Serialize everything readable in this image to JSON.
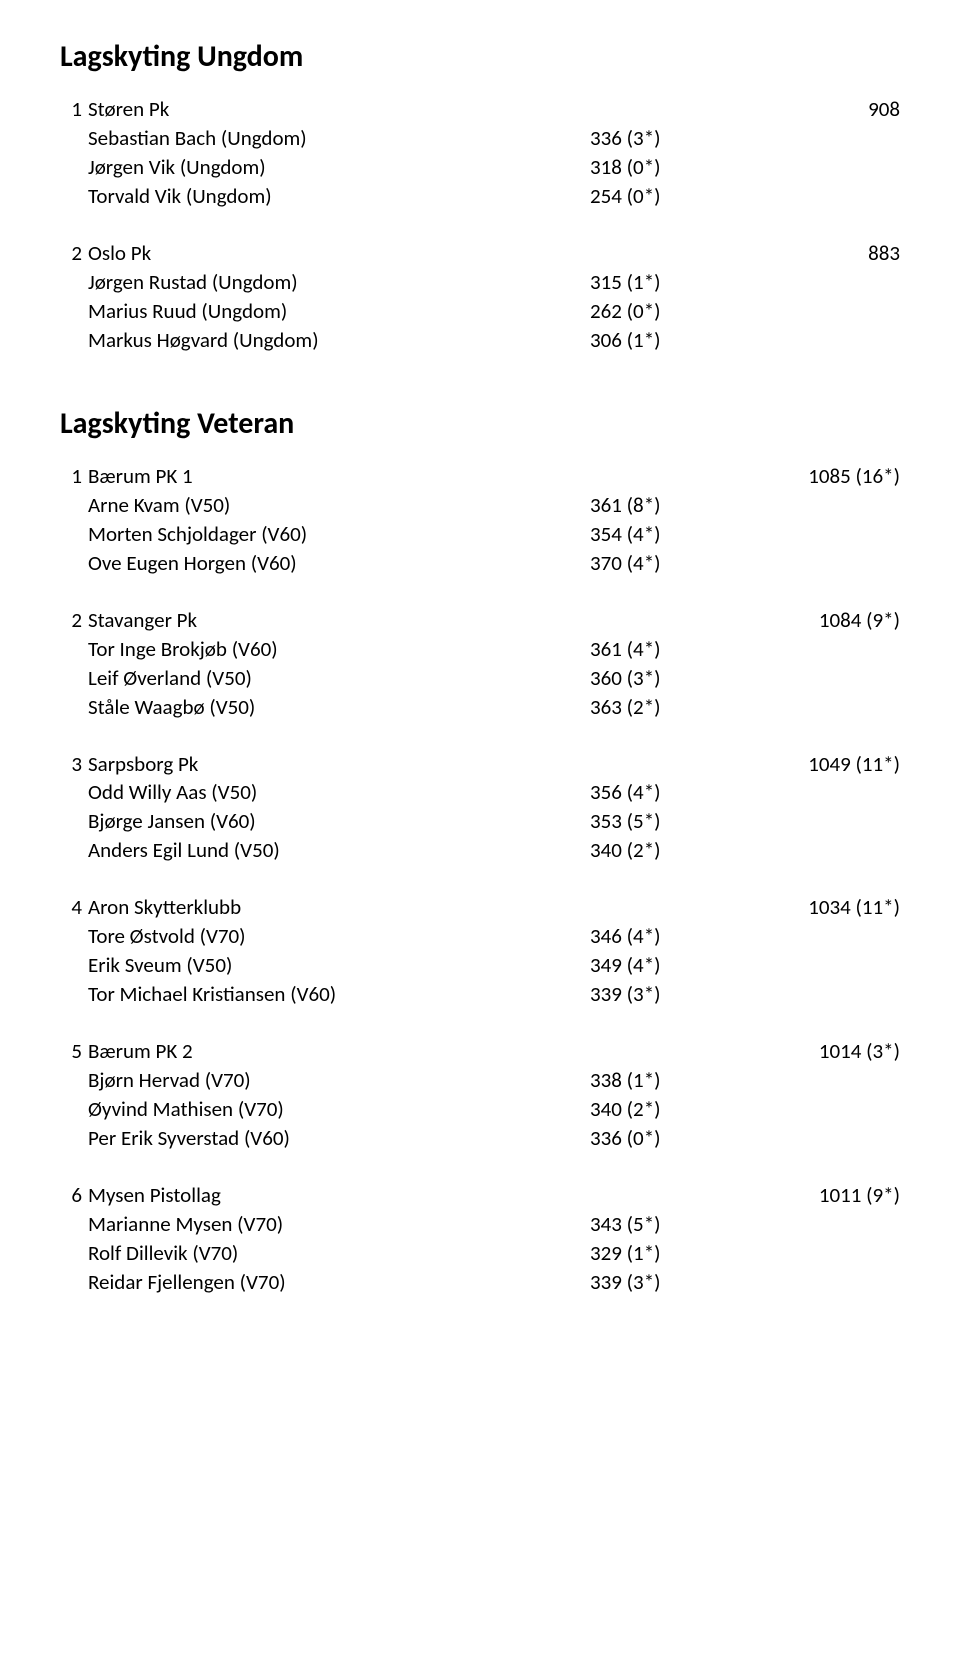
{
  "sections": [
    {
      "title": "Lagskyting Ungdom",
      "teams": [
        {
          "rank": "1",
          "name": "Støren Pk",
          "total": "908",
          "members": [
            {
              "name": "Sebastian Bach (Ungdom)",
              "score": "336 (3*)"
            },
            {
              "name": "Jørgen Vik (Ungdom)",
              "score": "318 (0*)"
            },
            {
              "name": "Torvald Vik (Ungdom)",
              "score": "254 (0*)"
            }
          ]
        },
        {
          "rank": "2",
          "name": "Oslo Pk",
          "total": "883",
          "members": [
            {
              "name": "Jørgen Rustad (Ungdom)",
              "score": "315 (1*)"
            },
            {
              "name": "Marius Ruud (Ungdom)",
              "score": "262 (0*)"
            },
            {
              "name": "Markus Høgvard (Ungdom)",
              "score": "306 (1*)"
            }
          ]
        }
      ]
    },
    {
      "title": "Lagskyting Veteran",
      "teams": [
        {
          "rank": "1",
          "name": "Bærum PK 1",
          "total": "1085 (16*)",
          "members": [
            {
              "name": "Arne Kvam (V50)",
              "score": "361 (8*)"
            },
            {
              "name": "Morten Schjoldager (V60)",
              "score": "354 (4*)"
            },
            {
              "name": "Ove Eugen Horgen (V60)",
              "score": "370 (4*)"
            }
          ]
        },
        {
          "rank": "2",
          "name": "Stavanger Pk",
          "total": "1084 (9*)",
          "members": [
            {
              "name": "Tor Inge Brokjøb (V60)",
              "score": "361 (4*)"
            },
            {
              "name": "Leif Øverland (V50)",
              "score": "360 (3*)"
            },
            {
              "name": "Ståle Waagbø (V50)",
              "score": "363 (2*)"
            }
          ]
        },
        {
          "rank": "3",
          "name": "Sarpsborg Pk",
          "total": "1049 (11*)",
          "members": [
            {
              "name": "Odd Willy Aas (V50)",
              "score": "356 (4*)"
            },
            {
              "name": "Bjørge Jansen (V60)",
              "score": "353 (5*)"
            },
            {
              "name": "Anders Egil Lund (V50)",
              "score": "340 (2*)"
            }
          ]
        },
        {
          "rank": "4",
          "name": "Aron Skytterklubb",
          "total": "1034 (11*)",
          "members": [
            {
              "name": "Tore Østvold (V70)",
              "score": "346 (4*)"
            },
            {
              "name": "Erik Sveum (V50)",
              "score": "349 (4*)"
            },
            {
              "name": "Tor Michael Kristiansen (V60)",
              "score": "339 (3*)"
            }
          ]
        },
        {
          "rank": "5",
          "name": "Bærum PK 2",
          "total": "1014 (3*)",
          "members": [
            {
              "name": "Bjørn Hervad (V70)",
              "score": "338 (1*)"
            },
            {
              "name": "Øyvind Mathisen (V70)",
              "score": "340 (2*)"
            },
            {
              "name": "Per Erik Syverstad (V60)",
              "score": "336 (0*)"
            }
          ]
        },
        {
          "rank": "6",
          "name": "Mysen Pistollag",
          "total": "1011 (9*)",
          "members": [
            {
              "name": "Marianne Mysen (V70)",
              "score": "343 (5*)"
            },
            {
              "name": "Rolf Dillevik (V70)",
              "score": "329 (1*)"
            },
            {
              "name": "Reidar Fjellengen (V70)",
              "score": "339 (3*)"
            }
          ]
        }
      ]
    }
  ]
}
